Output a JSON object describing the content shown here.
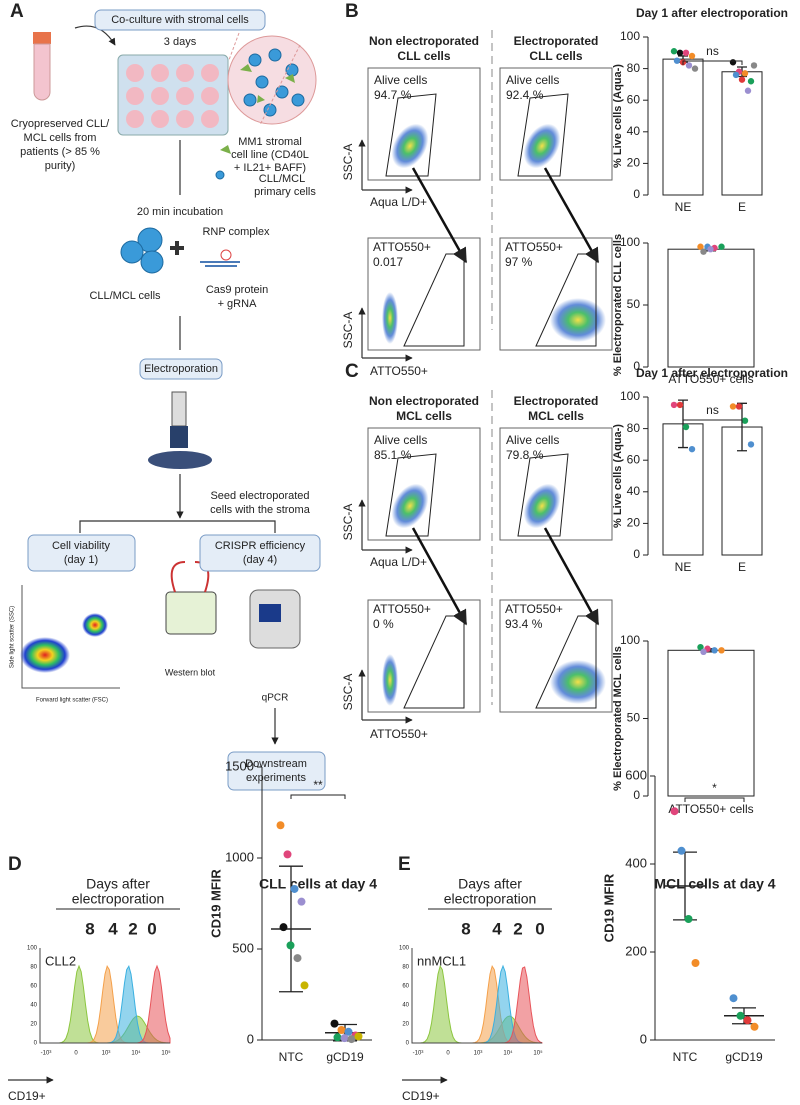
{
  "panels": [
    "A",
    "B",
    "C",
    "D",
    "E"
  ],
  "schematic": {
    "coculture": "Co-culture with stromal cells",
    "days3": "3 days",
    "cryo": [
      "Cryopreserved CLL/",
      "MCL cells from",
      "patients (> 85 %",
      "purity)"
    ],
    "mm1": [
      "MM1 stromal",
      "cell line (CD40L",
      "+ IL21+ BAFF)"
    ],
    "primary": [
      "CLL/MCL",
      "primary cells"
    ],
    "incubation": "20 min incubation",
    "rnp": "RNP complex",
    "cells": "CLL/MCL cells",
    "cas9": [
      "Cas9 protein",
      "+ gRNA"
    ],
    "electroporation": "Electroporation",
    "seed": [
      "Seed electroporated",
      "cells with the stroma"
    ],
    "viability": [
      "Cell viability",
      "(day 1)"
    ],
    "crispr": [
      "CRISPR efficiency",
      "(day 4)"
    ],
    "western": "Western blot",
    "qpcr": "qPCR",
    "downstream": [
      "Downstream",
      "experiments"
    ],
    "scatter_ylabel": "Side light scatter (SSC)",
    "scatter_xlabel": "Forward light scatter (FSC)"
  },
  "flow": {
    "ssc": "SSC-A",
    "aqua": "Aqua L/D+",
    "atto": "ATTO550+",
    "plots": [
      {
        "title": [
          "Non electroporated",
          "CLL cells"
        ],
        "alive": [
          "Alive cells",
          "94.7 %"
        ],
        "gated": [
          "ATTO550+",
          "0.017"
        ]
      },
      {
        "title": [
          "Electroporated",
          "CLL cells"
        ],
        "alive": [
          "Alive cells",
          "92.4 %"
        ],
        "gated": [
          "ATTO550+",
          "97 %"
        ]
      },
      {
        "title": [
          "Non electroporated",
          "MCL cells"
        ],
        "alive": [
          "Alive cells",
          "85.1 %"
        ],
        "gated": [
          "ATTO550+",
          "0 %"
        ]
      },
      {
        "title": [
          "Electroporated",
          "MCL cells"
        ],
        "alive": [
          "Alive cells",
          "79.8 %"
        ],
        "gated": [
          "ATTO550+",
          "93.4 %"
        ]
      }
    ]
  },
  "histograms": [
    {
      "header": [
        "Days after",
        "electroporation"
      ],
      "days": [
        {
          "name": "8",
          "color": "#8cc63f"
        },
        {
          "name": "4",
          "color": "#f4a04a"
        },
        {
          "name": "2",
          "color": "#3bb0e0"
        },
        {
          "name": "0",
          "color": "#e8545a"
        }
      ],
      "sample": "CLL2",
      "xlabel": "CD19+",
      "xticks": [
        "-10³",
        "0",
        "10³",
        "10⁴",
        "10⁵"
      ],
      "yticks": [
        "0",
        "20",
        "40",
        "60",
        "80",
        "100"
      ]
    },
    {
      "header": [
        "Days after",
        "electroporation"
      ],
      "days": [
        {
          "name": "8",
          "color": "#8cc63f"
        },
        {
          "name": "4",
          "color": "#f4a04a"
        },
        {
          "name": "2",
          "color": "#3bb0e0"
        },
        {
          "name": "0",
          "color": "#e8545a"
        }
      ],
      "sample": "nnMCL1",
      "xlabel": "CD19+",
      "xticks": [
        "-10³",
        "0",
        "10³",
        "10⁴",
        "10⁵"
      ],
      "yticks": [
        "0",
        "20",
        "40",
        "60",
        "80",
        "100"
      ]
    }
  ],
  "chart_data": [
    {
      "type": "bar",
      "title": "Day 1 after electroporation",
      "ylabel": "% Live cells (Aqua-)",
      "categories": [
        "NE",
        "E"
      ],
      "values": [
        86,
        78
      ],
      "errors": [
        2,
        3
      ],
      "points": [
        [
          91,
          90,
          90,
          88,
          85,
          84,
          82,
          80
        ],
        [
          84,
          78,
          77,
          72,
          76,
          73,
          66,
          82
        ]
      ],
      "point_colors": [
        [
          "#1aa05a",
          "#111111",
          "#e0457b",
          "#f28c28",
          "#4f8fcf",
          "#e03a3a",
          "#9b8fd0",
          "#888888"
        ],
        [
          "#111111",
          "#e0457b",
          "#f28c28",
          "#1aa05a",
          "#4f8fcf",
          "#e03a3a",
          "#9b8fd0",
          "#888888"
        ]
      ],
      "annotation": "ns",
      "ylim": [
        0,
        100
      ],
      "yticks": [
        0,
        20,
        40,
        60,
        80,
        100
      ]
    },
    {
      "type": "bar",
      "ylabel": "% Electroporated CLL cells",
      "categories": [
        "ATTO550+ cells"
      ],
      "values": [
        95
      ],
      "errors": [
        1.3
      ],
      "points": [
        [
          97,
          97,
          96,
          97,
          93,
          95
        ]
      ],
      "point_colors": [
        [
          "#f28c28",
          "#4f8fcf",
          "#e0457b",
          "#1aa05a",
          "#888888",
          "#9b8fd0"
        ]
      ],
      "ylim": [
        0,
        100
      ],
      "yticks": [
        0,
        50,
        100
      ]
    },
    {
      "type": "bar",
      "title": "Day 1 after electroporation",
      "ylabel": "% Live cells (Aqua-)",
      "categories": [
        "NE",
        "E"
      ],
      "values": [
        83,
        81
      ],
      "errors": [
        15,
        15
      ],
      "points": [
        [
          95,
          95,
          81,
          67
        ],
        [
          94,
          94,
          85,
          70
        ]
      ],
      "point_colors": [
        [
          "#e0457b",
          "#e03a3a",
          "#1aa05a",
          "#4f8fcf"
        ],
        [
          "#f28c28",
          "#e03a3a",
          "#1aa05a",
          "#4f8fcf"
        ]
      ],
      "annotation": "ns",
      "ylim": [
        0,
        100
      ],
      "yticks": [
        0,
        20,
        40,
        60,
        80,
        100
      ]
    },
    {
      "type": "bar",
      "ylabel": "% Electroporated MCL cells",
      "categories": [
        "ATTO550+ cells"
      ],
      "values": [
        94
      ],
      "errors": [
        1
      ],
      "points": [
        [
          96,
          95,
          94,
          94,
          93
        ]
      ],
      "point_colors": [
        [
          "#1aa05a",
          "#e0457b",
          "#4f8fcf",
          "#f28c28",
          "#9b8fd0"
        ]
      ],
      "ylim": [
        0,
        100
      ],
      "yticks": [
        0,
        50,
        100
      ]
    },
    {
      "type": "dot",
      "title": "CLL cells at day 4",
      "ylabel": "CD19 MFIR",
      "categories": [
        "NTC",
        "gCD19"
      ],
      "values": [
        610,
        40
      ],
      "errors": [
        345,
        45
      ],
      "points": [
        [
          1180,
          1020,
          830,
          760,
          620,
          520,
          450,
          300
        ],
        [
          90,
          55,
          45,
          25,
          15,
          10,
          5,
          20
        ]
      ],
      "point_colors": [
        [
          "#f28c28",
          "#e0457b",
          "#4f8fcf",
          "#9b8fd0",
          "#111111",
          "#1aa05a",
          "#888888",
          "#c8b400"
        ],
        [
          "#111111",
          "#f28c28",
          "#4f8fcf",
          "#e0457b",
          "#1aa05a",
          "#9b8fd0",
          "#888888",
          "#c8b400"
        ]
      ],
      "annotation": "**",
      "ylim": [
        0,
        1500
      ],
      "yticks": [
        0,
        500,
        1000,
        1500
      ]
    },
    {
      "type": "dot",
      "title": "MCL cells at day 4",
      "ylabel": "CD19 MFIR",
      "categories": [
        "NTC",
        "gCD19"
      ],
      "values": [
        350,
        55
      ],
      "errors": [
        77,
        18
      ],
      "points": [
        [
          520,
          430,
          275,
          175
        ],
        [
          95,
          55,
          45,
          30
        ]
      ],
      "point_colors": [
        [
          "#e0457b",
          "#4f8fcf",
          "#1aa05a",
          "#f28c28"
        ],
        [
          "#4f8fcf",
          "#1aa05a",
          "#e03a3a",
          "#f28c28"
        ]
      ],
      "annotation": "*",
      "ylim": [
        0,
        600
      ],
      "yticks": [
        0,
        200,
        400,
        600
      ]
    }
  ]
}
